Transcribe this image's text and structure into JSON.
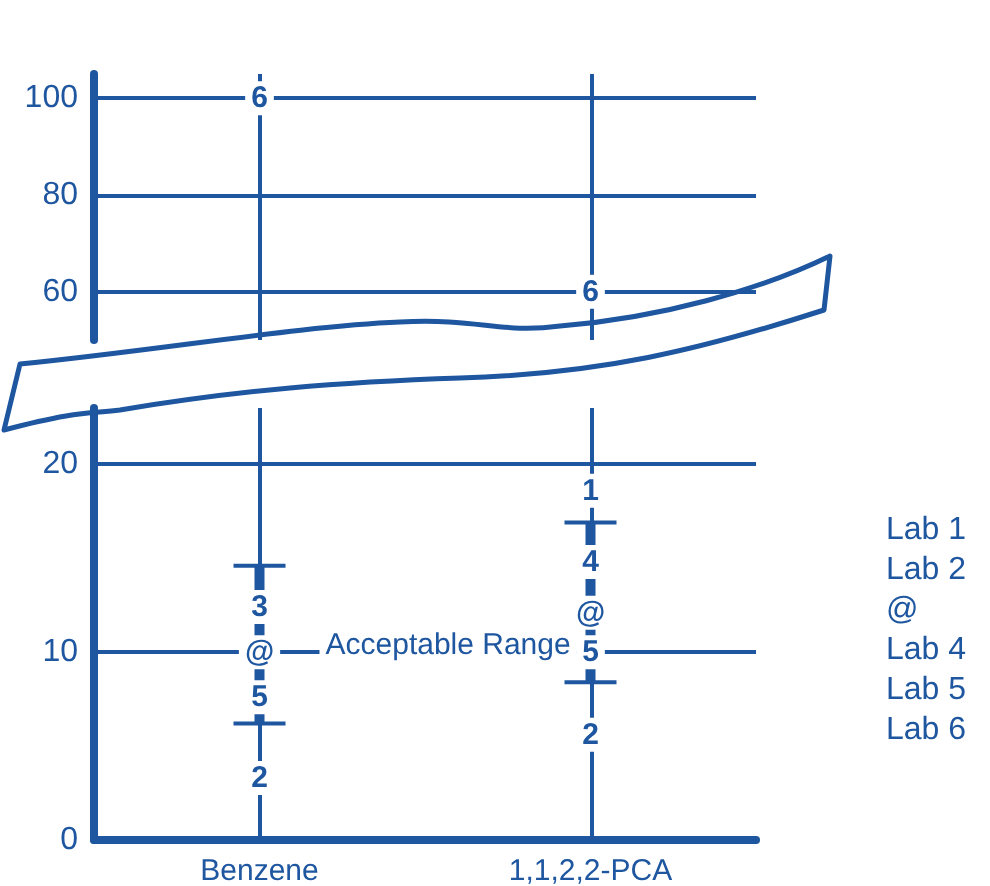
{
  "chart_data": [
    {
      "type": "scatter",
      "categories": [
        "Benzene",
        "1,1,2,2-PCA"
      ],
      "ylim": [
        50,
        105
      ],
      "yticks": [
        60,
        80,
        100
      ],
      "grid": true,
      "tick_labels": "y",
      "annotations": [
        {
          "text": "6",
          "x": "Benzene",
          "y": 100
        },
        {
          "text": "6",
          "x": "1,1,2,2-PCA",
          "y": 60
        }
      ]
    },
    {
      "type": "bar",
      "categories": [
        "Benzene",
        "1,1,2,2-PCA"
      ],
      "ylim": [
        0,
        23
      ],
      "yticks": [
        0,
        10,
        20
      ],
      "grid": true,
      "series": [
        {
          "name": "Acceptable Range",
          "color": "#1e56a0",
          "base": [
            6.2,
            8.4
          ],
          "values": [
            8.4,
            8.5
          ]
        }
      ],
      "annotations": [
        {
          "text": "3",
          "x": "Benzene",
          "y": 12.4
        },
        {
          "text": "@",
          "x": "Benzene",
          "y": 10
        },
        {
          "text": "5",
          "x": "Benzene",
          "y": 7.6
        },
        {
          "text": "2",
          "x": "Benzene",
          "y": 3.3
        },
        {
          "text": "1",
          "x": "1,1,2,2-PCA",
          "y": 18.6
        },
        {
          "text": "4",
          "x": "1,1,2,2-PCA",
          "y": 14.8
        },
        {
          "text": "@",
          "x": "1,1,2,2-PCA",
          "y": 12.1
        },
        {
          "text": "5",
          "x": "1,1,2,2-PCA",
          "y": 10
        },
        {
          "text": "2",
          "x": "1,1,2,2-PCA",
          "y": 5.6
        },
        "Lab 1",
        "Lab 2",
        "@",
        "Lab 4",
        "Lab 5",
        "Lab 6"
      ]
    }
  ]
}
